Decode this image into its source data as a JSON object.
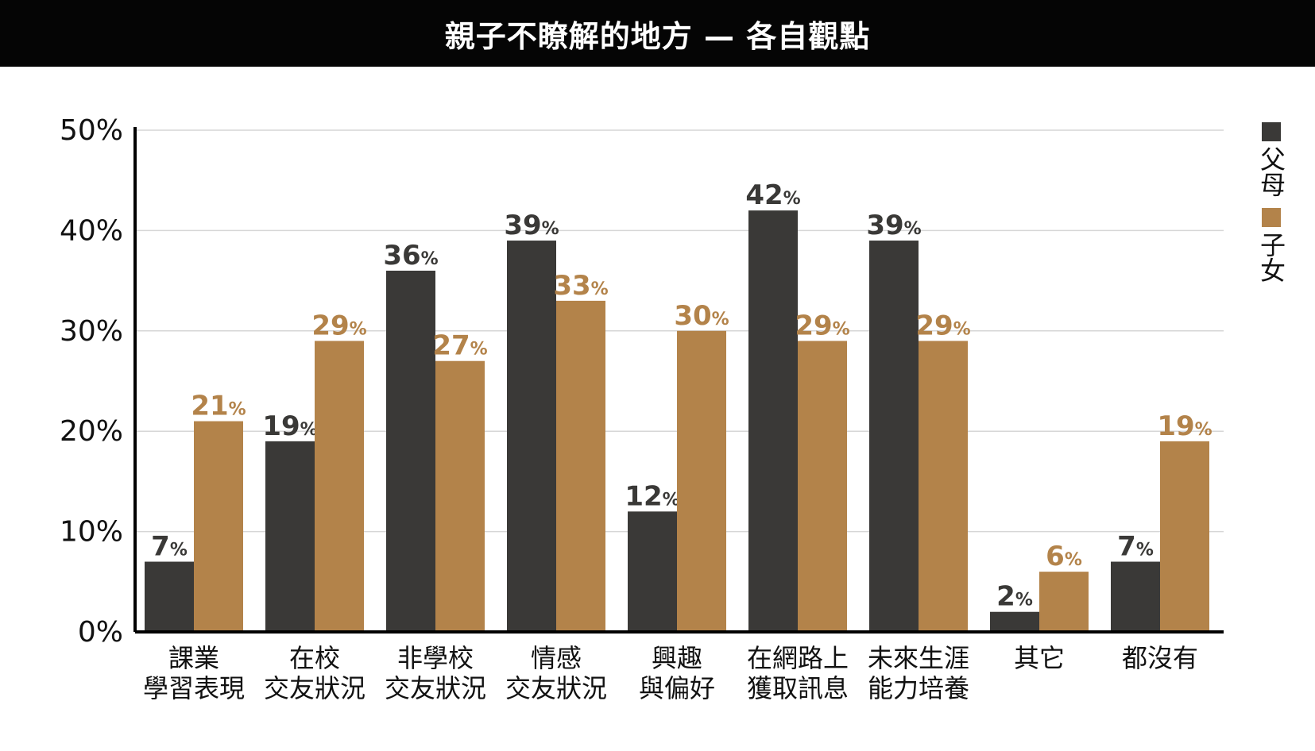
{
  "title": "親子不瞭解的地方 — 各自觀點",
  "legend": [
    {
      "label": "父母",
      "color": "#3a3937"
    },
    {
      "label": "子女",
      "color": "#b3834a"
    }
  ],
  "chart_data": {
    "type": "bar",
    "title": "親子不瞭解的地方 — 各自觀點",
    "xlabel": "",
    "ylabel": "",
    "ylim": [
      0,
      50
    ],
    "yticks": [
      "0%",
      "10%",
      "20%",
      "30%",
      "40%",
      "50%"
    ],
    "grid": true,
    "legend_position": "right",
    "categories": [
      [
        "課業",
        "學習表現"
      ],
      [
        "在校",
        "交友狀況"
      ],
      [
        "非學校",
        "交友狀況"
      ],
      [
        "情感",
        "交友狀況"
      ],
      [
        "興趣",
        "與偏好"
      ],
      [
        "在網路上",
        "獲取訊息"
      ],
      [
        "未來生涯",
        "能力培養"
      ],
      [
        "其它"
      ],
      [
        "都沒有"
      ]
    ],
    "series": [
      {
        "name": "父母",
        "color": "#3a3937",
        "values": [
          7,
          19,
          36,
          39,
          12,
          42,
          39,
          2,
          7
        ]
      },
      {
        "name": "子女",
        "color": "#b3834a",
        "values": [
          21,
          29,
          27,
          33,
          30,
          29,
          29,
          6,
          19
        ]
      }
    ],
    "value_suffix": "%"
  }
}
